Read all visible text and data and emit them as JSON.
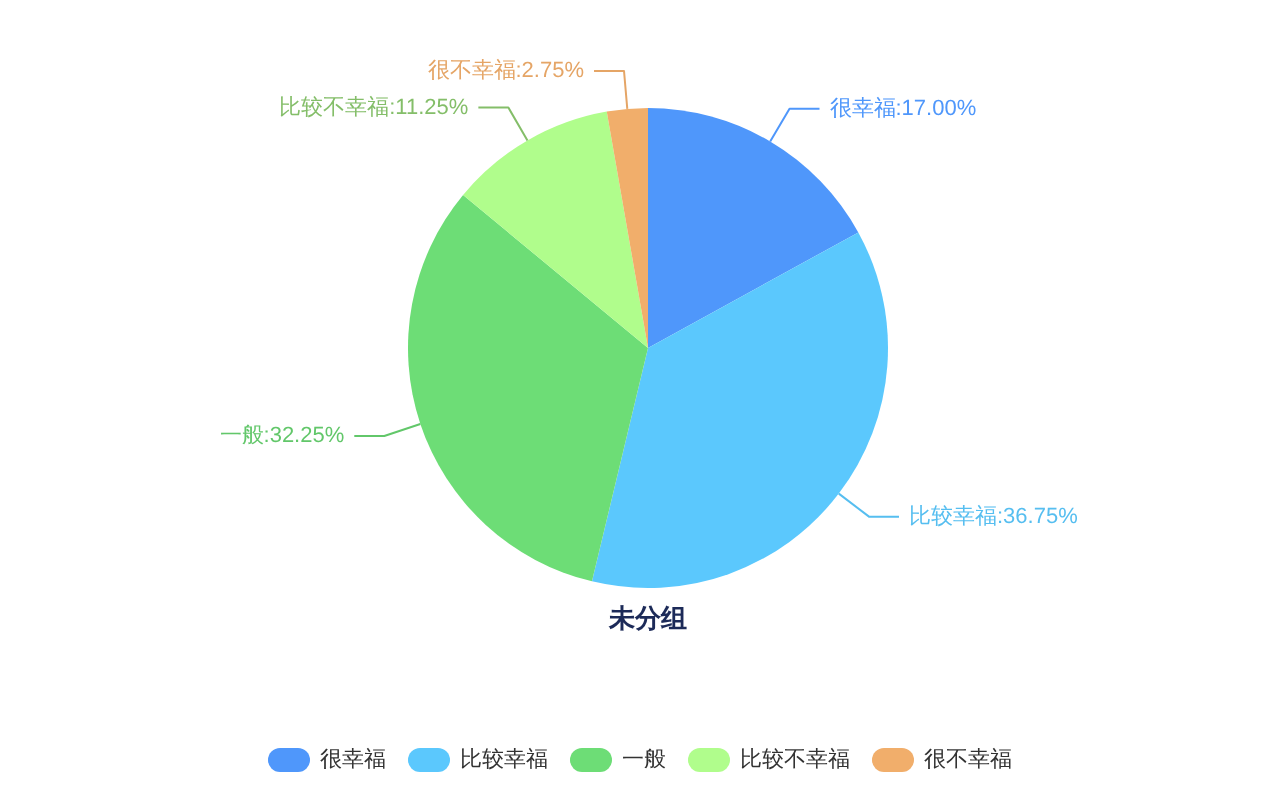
{
  "chart_data": {
    "type": "pie",
    "title": "未分组",
    "categories": [
      "很幸福",
      "比较幸福",
      "一般",
      "比较不幸福",
      "很不幸福"
    ],
    "values": [
      17.0,
      36.75,
      32.25,
      11.25,
      2.75
    ],
    "colors": [
      "#4f97fb",
      "#5bc8fd",
      "#6ddd76",
      "#b0fd8c",
      "#f1ae6b"
    ],
    "value_labels": [
      "很幸福:17.00%",
      "比较幸福:36.75%",
      "一般:32.25%",
      "比较不幸福:11.25%",
      "很不幸福:2.75%"
    ],
    "legend": "bottom"
  }
}
